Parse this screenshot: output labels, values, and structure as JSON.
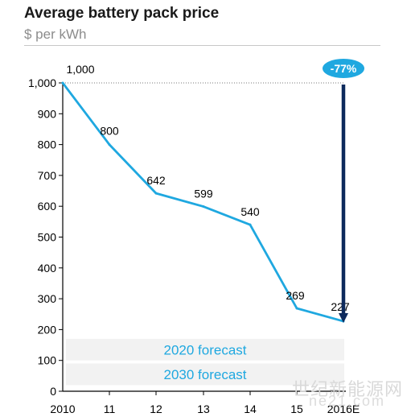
{
  "chart_data": {
    "type": "line",
    "title": "Average battery pack price",
    "subtitle": "$ per kWh",
    "categories": [
      "2010",
      "11",
      "12",
      "13",
      "14",
      "15",
      "2016E"
    ],
    "values": [
      1000,
      800,
      642,
      599,
      540,
      269,
      227
    ],
    "data_labels": [
      "1,000",
      "800",
      "642",
      "599",
      "540",
      "269",
      "227"
    ],
    "y_ticks": [
      "0",
      "100",
      "200",
      "300",
      "400",
      "500",
      "600",
      "700",
      "800",
      "900",
      "1,000"
    ],
    "ylim": [
      0,
      1000
    ],
    "grid": false,
    "annotation": {
      "text": "-77%",
      "from_category": "2016E",
      "from_value": 1000,
      "to_value": 227
    },
    "forecast_bands": [
      {
        "label": "2020 forecast",
        "y_from": 170,
        "y_to": 100
      },
      {
        "label": "2030 forecast",
        "y_from": 90,
        "y_to": 20
      }
    ],
    "colors": {
      "line": "#1fa8e0",
      "arrow": "#0d2a5c",
      "badge": "#1fa8e0",
      "band": "#f2f2f2"
    }
  },
  "watermark": {
    "line1": "世纪新能源网",
    "line2": "ne21.com"
  }
}
